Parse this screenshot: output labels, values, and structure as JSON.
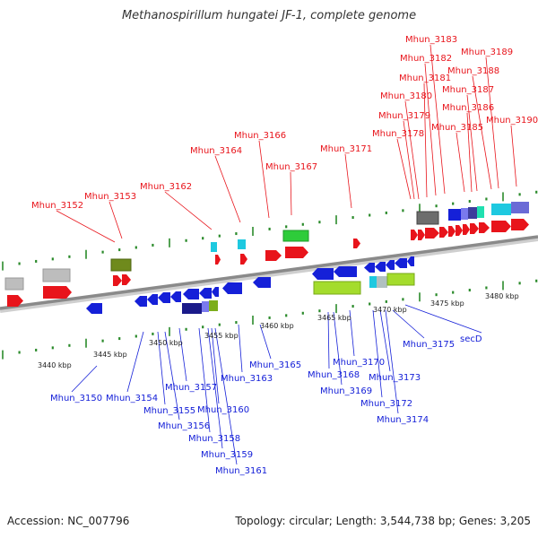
{
  "title": "Methanospirillum hungatei JF-1, complete genome",
  "footer": {
    "accession": "Accession: NC_007796",
    "topology": "Topology: circular; Length: 3,544,738 bp; Genes: 3,205"
  },
  "colors": {
    "forward": "#e8141b",
    "reverse": "#1520d8",
    "axis": "#8a8a8a",
    "ticks": "#2a8a2a"
  },
  "scale_labels": [
    "3440 kbp",
    "3445 kbp",
    "3450 kbp",
    "3455 kbp",
    "3460 kbp",
    "3465 kbp",
    "3470 kbp",
    "3475 kbp",
    "3480 kbp"
  ],
  "forward_genes": [
    "Mhun_3152",
    "Mhun_3153",
    "Mhun_3162",
    "Mhun_3164",
    "Mhun_3166",
    "Mhun_3167",
    "Mhun_3171",
    "Mhun_3178",
    "Mhun_3179",
    "Mhun_3180",
    "Mhun_3181",
    "Mhun_3182",
    "Mhun_3183",
    "Mhun_3185",
    "Mhun_3186",
    "Mhun_3187",
    "Mhun_3188",
    "Mhun_3189",
    "Mhun_3190"
  ],
  "reverse_genes": [
    "Mhun_3150",
    "Mhun_3154",
    "Mhun_3155",
    "Mhun_3156",
    "Mhun_3157",
    "Mhun_3158",
    "Mhun_3159",
    "Mhun_3160",
    "Mhun_3161",
    "Mhun_3163",
    "Mhun_3165",
    "Mhun_3168",
    "Mhun_3169",
    "Mhun_3170",
    "Mhun_3172",
    "Mhun_3173",
    "Mhun_3174",
    "Mhun_3175",
    "secD"
  ]
}
